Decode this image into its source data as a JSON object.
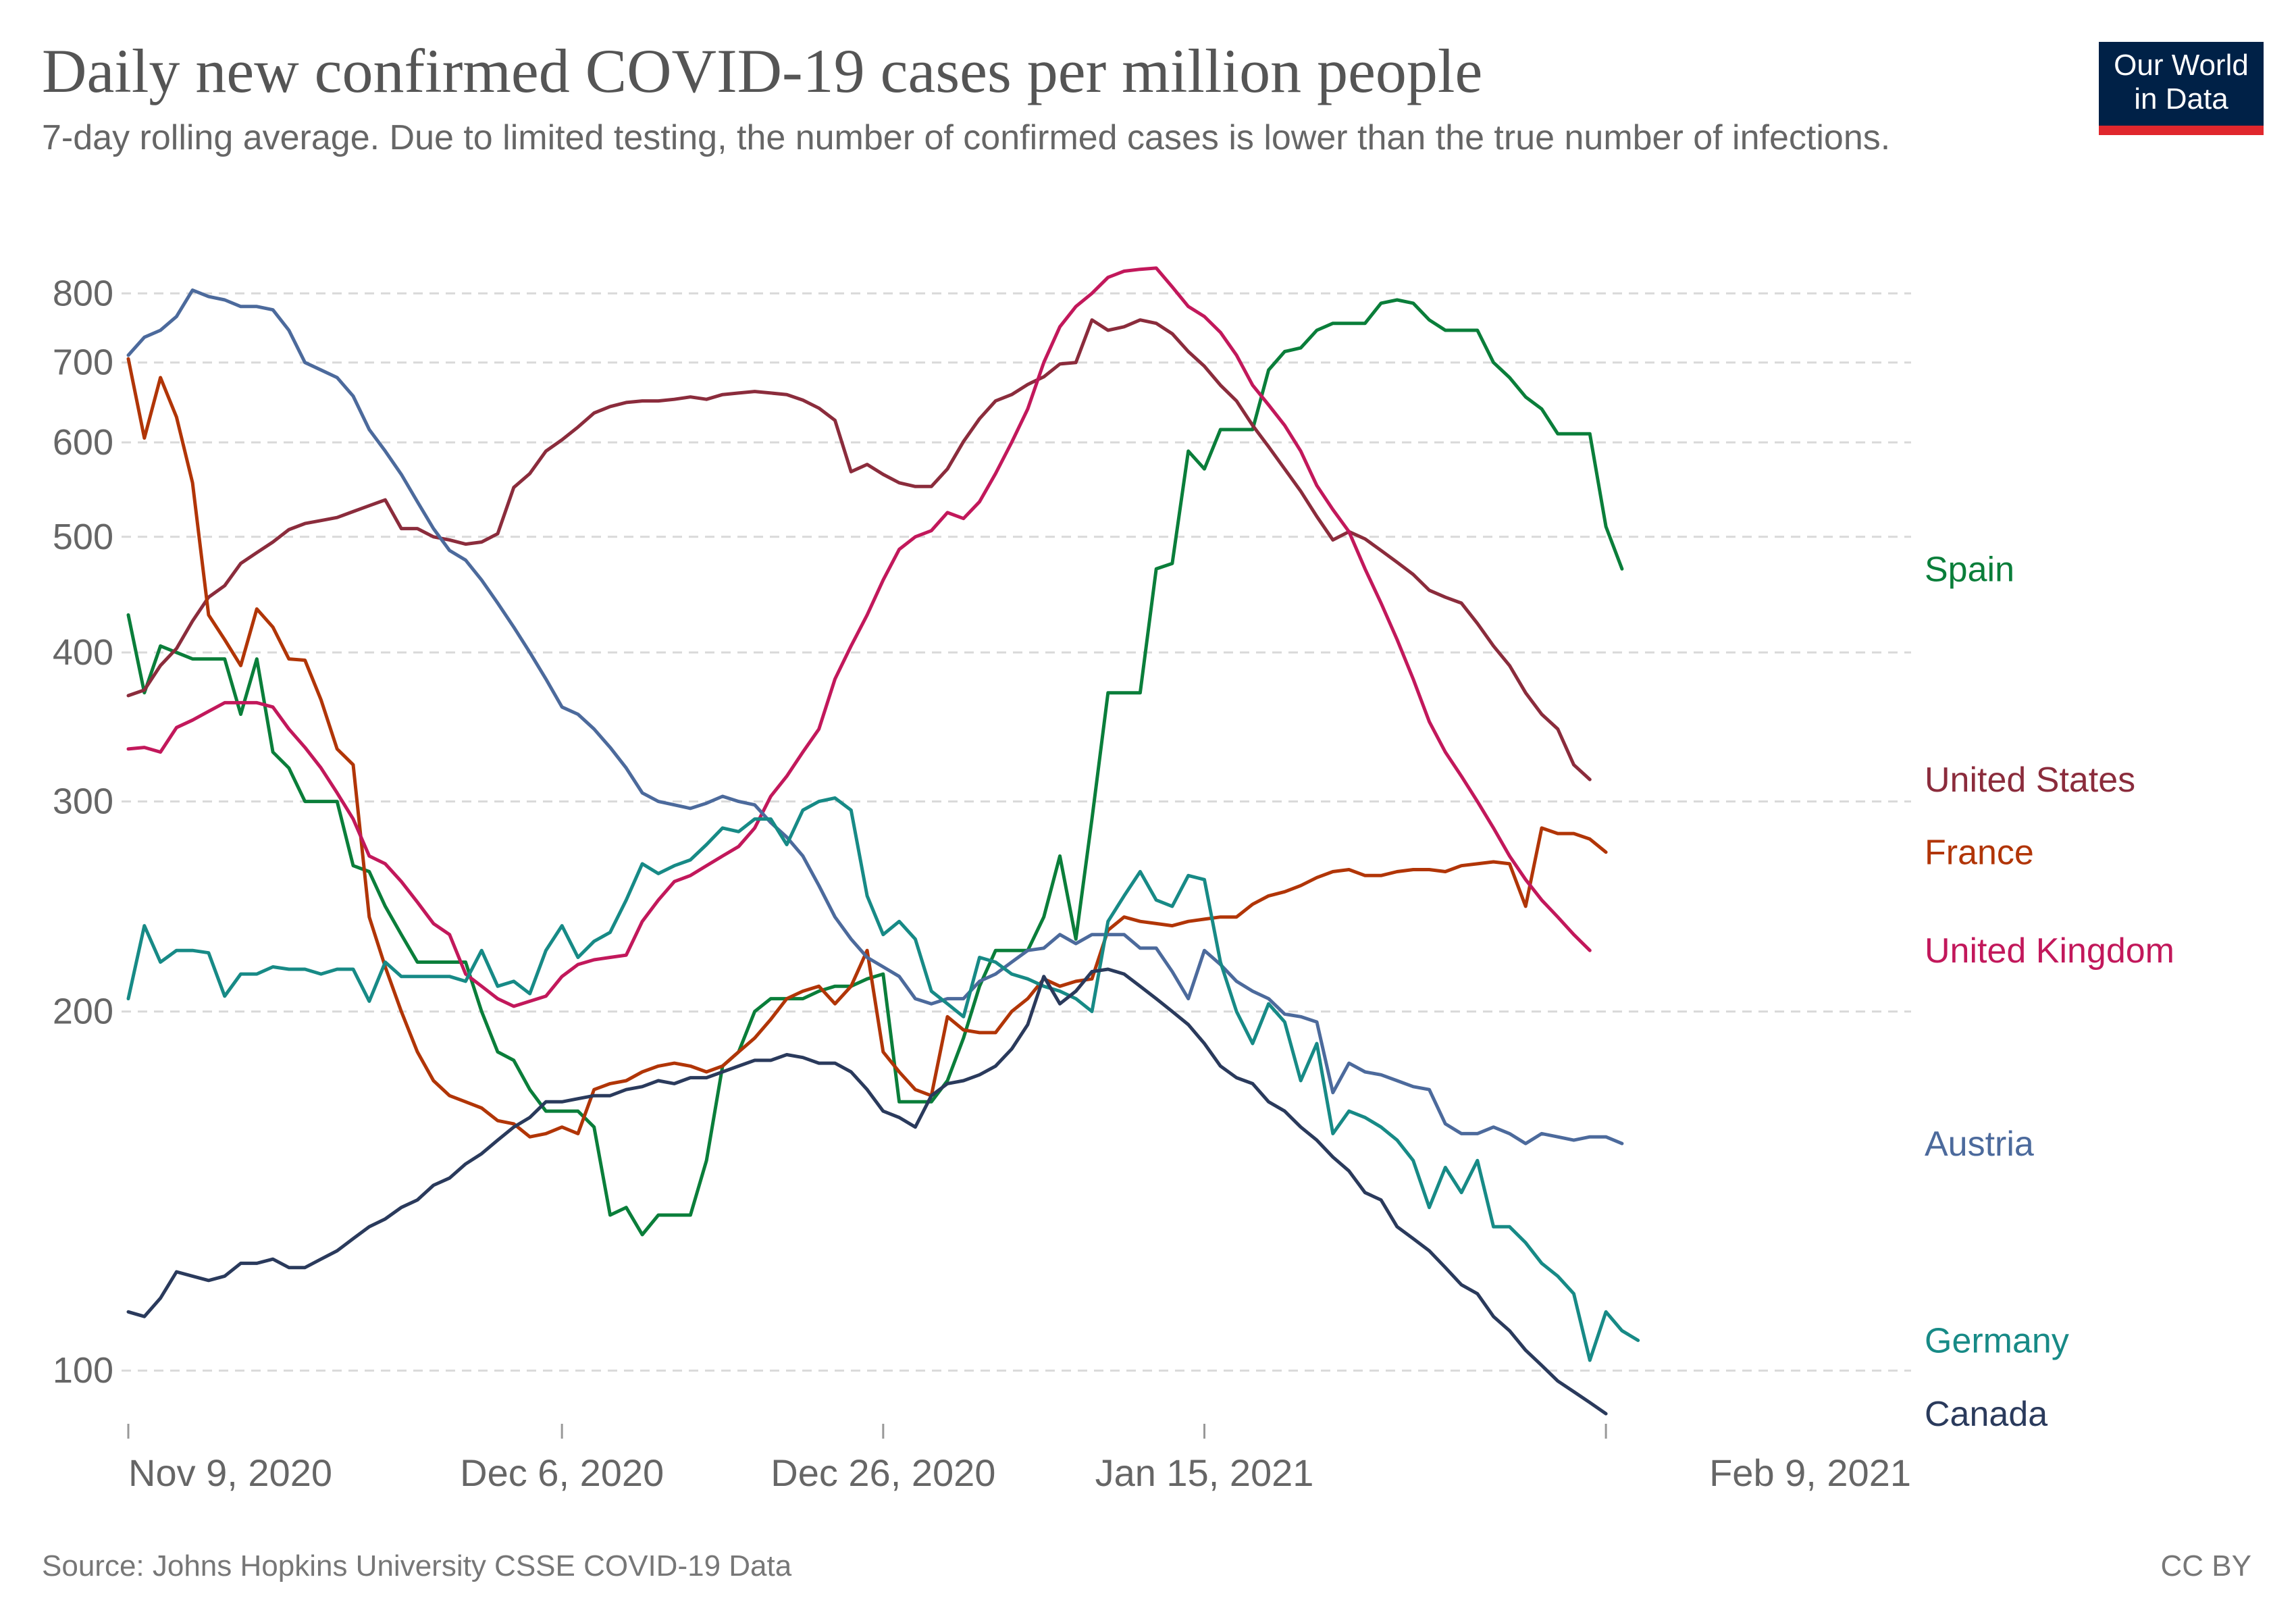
{
  "title": "Daily new confirmed COVID-19 cases per million people",
  "subtitle": "7-day rolling average. Due to limited testing, the number of confirmed cases is lower than the true number of infections.",
  "logo": {
    "line1": "Our World",
    "line2": "in Data",
    "bg_color": "#002147",
    "bar_color": "#e0272d"
  },
  "source": "Source: Johns Hopkins University CSSE COVID-19 Data",
  "license": "CC BY",
  "chart_data": {
    "type": "line",
    "yscale": "log",
    "ylim": [
      90,
      870
    ],
    "yticks": [
      100,
      200,
      300,
      400,
      500,
      600,
      700,
      800
    ],
    "x_start_day": 0,
    "x_end_day": 111,
    "x_tick_days": [
      0,
      27,
      47,
      67,
      92
    ],
    "x_tick_labels": [
      "Nov 9, 2020",
      "Dec 6, 2020",
      "Dec 26, 2020",
      "Jan 15, 2021",
      "Feb 9, 2021"
    ],
    "series": [
      {
        "name": "Spain",
        "color": "#0a7e3a",
        "start_day": 0,
        "values": [
          430,
          370,
          405,
          400,
          395,
          395,
          395,
          355,
          395,
          330,
          320,
          300,
          300,
          300,
          265,
          262,
          245,
          232,
          220,
          220,
          220,
          220,
          200,
          185,
          182,
          172,
          165,
          165,
          165,
          160,
          135,
          137,
          130,
          135,
          135,
          135,
          150,
          180,
          185,
          200,
          205,
          205,
          205,
          208,
          210,
          210,
          213,
          215,
          168,
          168,
          168,
          175,
          190,
          210,
          225,
          225,
          225,
          240,
          270,
          230,
          290,
          370,
          370,
          370,
          470,
          475,
          590,
          570,
          615,
          615,
          615,
          690,
          715,
          720,
          745,
          755,
          755,
          755,
          785,
          790,
          785,
          760,
          745,
          745,
          745,
          700,
          680,
          655,
          640,
          610,
          610,
          610,
          510,
          470
        ]
      },
      {
        "name": "United States",
        "color": "#8b2c3c",
        "start_day": 0,
        "values": [
          368,
          372,
          390,
          403,
          425,
          445,
          455,
          475,
          485,
          495,
          507,
          513,
          516,
          519,
          525,
          531,
          537,
          508,
          508,
          500,
          497,
          493,
          495,
          503,
          550,
          565,
          590,
          603,
          618,
          635,
          643,
          648,
          650,
          650,
          652,
          655,
          652,
          658,
          660,
          662,
          660,
          658,
          651,
          641,
          626,
          567,
          575,
          564,
          555,
          551,
          551,
          570,
          601,
          628,
          650,
          658,
          671,
          681,
          698,
          700,
          760,
          745,
          750,
          760,
          755,
          740,
          715,
          695,
          670,
          650,
          620,
          595,
          570,
          546,
          520,
          497,
          505,
          498,
          487,
          476,
          465,
          451,
          445,
          440,
          423,
          405,
          390,
          370,
          355,
          345,
          322,
          313
        ]
      },
      {
        "name": "France",
        "color": "#b13507",
        "start_day": 0,
        "values": [
          705,
          605,
          680,
          630,
          555,
          430,
          410,
          390,
          435,
          420,
          395,
          394,
          365,
          332,
          322,
          240,
          218,
          200,
          185,
          175,
          170,
          168,
          166,
          162,
          161,
          157,
          158,
          160,
          158,
          172,
          174,
          175,
          178,
          180,
          181,
          180,
          178,
          180,
          185,
          190,
          197,
          205,
          208,
          210,
          203,
          210,
          225,
          185,
          178,
          172,
          170,
          198,
          193,
          192,
          192,
          200,
          205,
          213,
          210,
          212,
          213,
          234,
          240,
          238,
          237,
          236,
          238,
          239,
          240,
          240,
          246,
          250,
          252,
          255,
          259,
          262,
          263,
          260,
          260,
          262,
          263,
          263,
          262,
          265,
          266,
          267,
          266,
          245,
          285,
          282,
          282,
          279,
          272
        ]
      },
      {
        "name": "United Kingdom",
        "color": "#c2185b",
        "start_day": 0,
        "values": [
          332,
          333,
          330,
          346,
          351,
          357,
          363,
          363,
          363,
          360,
          345,
          333,
          320,
          305,
          290,
          270,
          266,
          257,
          247,
          237,
          232,
          215,
          210,
          205,
          202,
          204,
          206,
          214,
          219,
          221,
          222,
          223,
          238,
          248,
          257,
          260,
          265,
          270,
          275,
          285,
          303,
          315,
          330,
          345,
          380,
          405,
          430,
          460,
          488,
          500,
          506,
          524,
          518,
          535,
          565,
          600,
          640,
          700,
          750,
          780,
          800,
          825,
          835,
          838,
          840,
          810,
          780,
          765,
          742,
          710,
          670,
          645,
          620,
          590,
          552,
          527,
          505,
          470,
          440,
          410,
          380,
          350,
          330,
          315,
          300,
          285,
          270,
          258,
          248,
          240,
          232,
          225
        ]
      },
      {
        "name": "Austria",
        "color": "#4c6a9c",
        "start_day": 0,
        "values": [
          710,
          735,
          745,
          765,
          805,
          795,
          790,
          780,
          780,
          775,
          745,
          700,
          690,
          680,
          656,
          615,
          590,
          564,
          535,
          508,
          487,
          478,
          460,
          440,
          420,
          400,
          380,
          360,
          355,
          345,
          333,
          320,
          305,
          300,
          298,
          296,
          299,
          303,
          300,
          298,
          288,
          280,
          270,
          255,
          240,
          230,
          222,
          218,
          214,
          205,
          203,
          205,
          205,
          212,
          215,
          220,
          225,
          226,
          232,
          228,
          232,
          232,
          232,
          226,
          226,
          216,
          205,
          225,
          219,
          212,
          208,
          205,
          199,
          198,
          196,
          171,
          181,
          178,
          177,
          175,
          173,
          172,
          161,
          158,
          158,
          160,
          158,
          155,
          158,
          157,
          156,
          157,
          157,
          155
        ]
      },
      {
        "name": "Germany",
        "color": "#178a86",
        "start_day": 0,
        "values": [
          205,
          236,
          220,
          225,
          225,
          224,
          206,
          215,
          215,
          218,
          217,
          217,
          215,
          217,
          217,
          204,
          220,
          214,
          214,
          214,
          214,
          212,
          225,
          210,
          212,
          207,
          225,
          236,
          222,
          229,
          233,
          248,
          266,
          261,
          265,
          268,
          276,
          285,
          283,
          290,
          290,
          276,
          295,
          300,
          302,
          295,
          250,
          232,
          238,
          230,
          208,
          203,
          198,
          222,
          220,
          215,
          213,
          210,
          208,
          205,
          200,
          238,
          250,
          262,
          248,
          245,
          260,
          258,
          220,
          200,
          188,
          203,
          196,
          175,
          188,
          158,
          165,
          163,
          160,
          156,
          150,
          137,
          148,
          141,
          150,
          132,
          132,
          128,
          123,
          120,
          116,
          102,
          112,
          108,
          106
        ]
      },
      {
        "name": "Canada",
        "color": "#2a3a5c",
        "start_day": 0,
        "values": [
          112,
          111,
          115,
          121,
          120,
          119,
          120,
          123,
          123,
          124,
          122,
          122,
          124,
          126,
          129,
          132,
          134,
          137,
          139,
          143,
          145,
          149,
          152,
          156,
          160,
          163,
          168,
          168,
          169,
          170,
          170,
          172,
          173,
          175,
          174,
          176,
          176,
          178,
          180,
          182,
          182,
          184,
          183,
          181,
          181,
          178,
          172,
          165,
          163,
          160,
          170,
          174,
          175,
          177,
          180,
          186,
          195,
          214,
          203,
          208,
          216,
          217,
          215,
          210,
          205,
          200,
          195,
          188,
          180,
          176,
          174,
          168,
          165,
          160,
          156,
          151,
          147,
          141,
          139,
          132,
          129,
          126,
          122,
          118,
          116,
          111,
          108,
          104,
          101,
          98,
          96,
          94,
          92
        ]
      }
    ]
  }
}
